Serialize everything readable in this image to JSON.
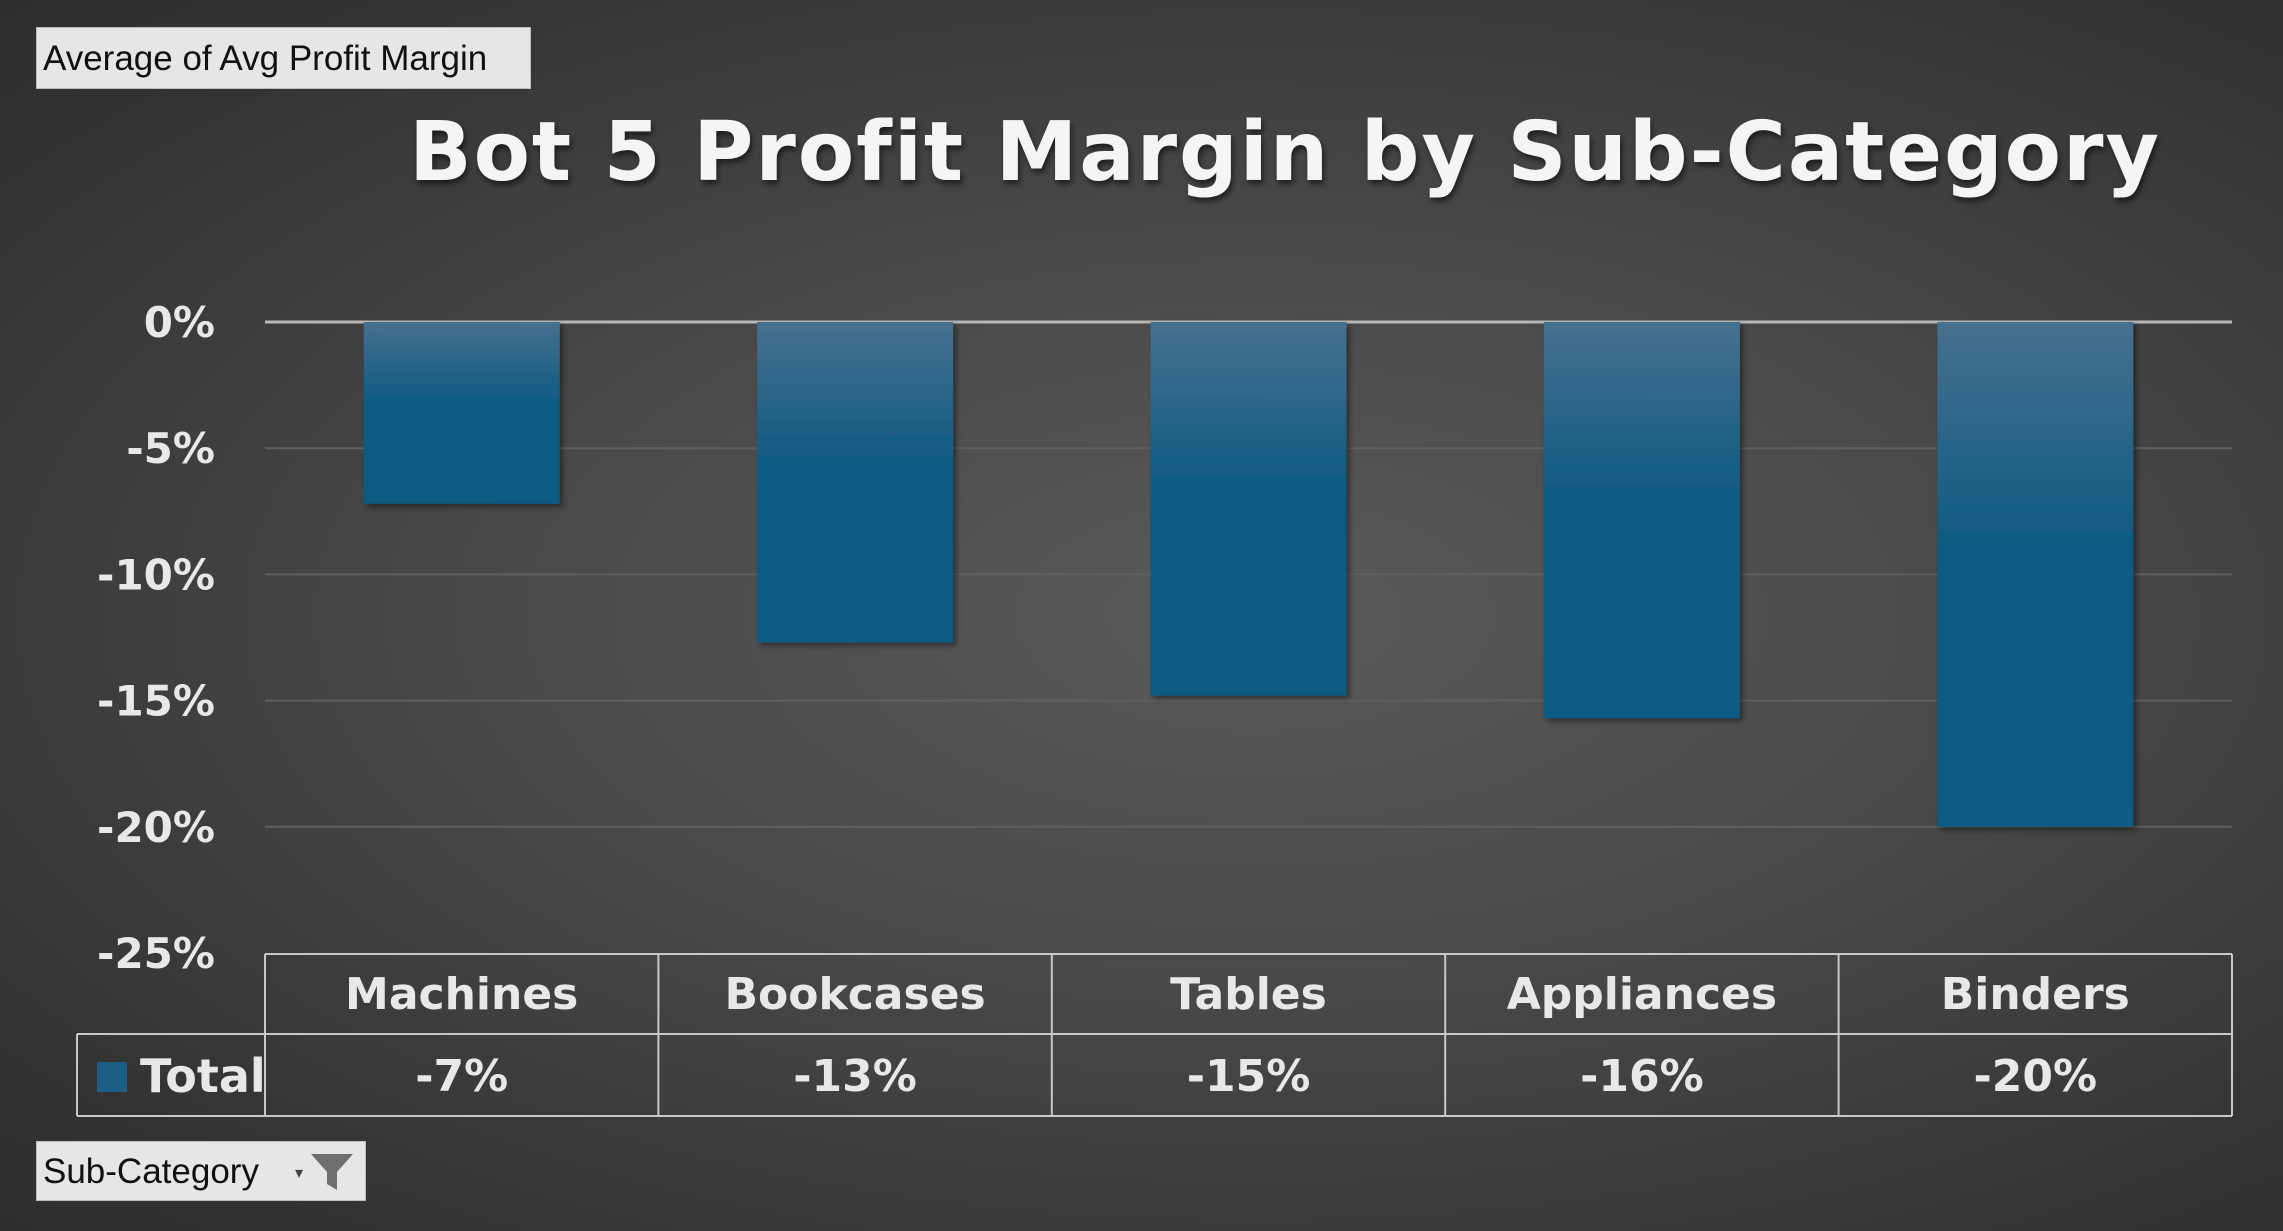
{
  "field_buttons": {
    "value_field": "Average of Avg Profit Margin",
    "filter_field": "Sub-Category",
    "filter_icon": "funnel-icon",
    "dropdown_icon": "dropdown-arrow-icon"
  },
  "chart_data": {
    "type": "bar",
    "title": "Bot 5 Profit Margin by Sub-Category",
    "categories": [
      "Machines",
      "Bookcases",
      "Tables",
      "Appliances",
      "Binders"
    ],
    "series": [
      {
        "name": "Total",
        "values": [
          -7.2,
          -12.7,
          -14.8,
          -15.7,
          -20.0
        ],
        "labels": [
          "-7%",
          "-13%",
          "-15%",
          "-16%",
          "-20%"
        ],
        "color": "#1b5f84"
      }
    ],
    "yticks": [
      "0%",
      "-5%",
      "-10%",
      "-15%",
      "-20%",
      "-25%"
    ],
    "ylim": [
      -25,
      0
    ],
    "xlabel": "",
    "ylabel": "",
    "grid": true,
    "legend": "data-table-left",
    "colors": {
      "bar_top": "#47708f",
      "bar_bottom": "#0d5a82",
      "text": "#e8e8e8",
      "grid": "#5f5f5f",
      "zero_line": "#b8b8b8",
      "table_border": "#c8c8c8"
    }
  }
}
